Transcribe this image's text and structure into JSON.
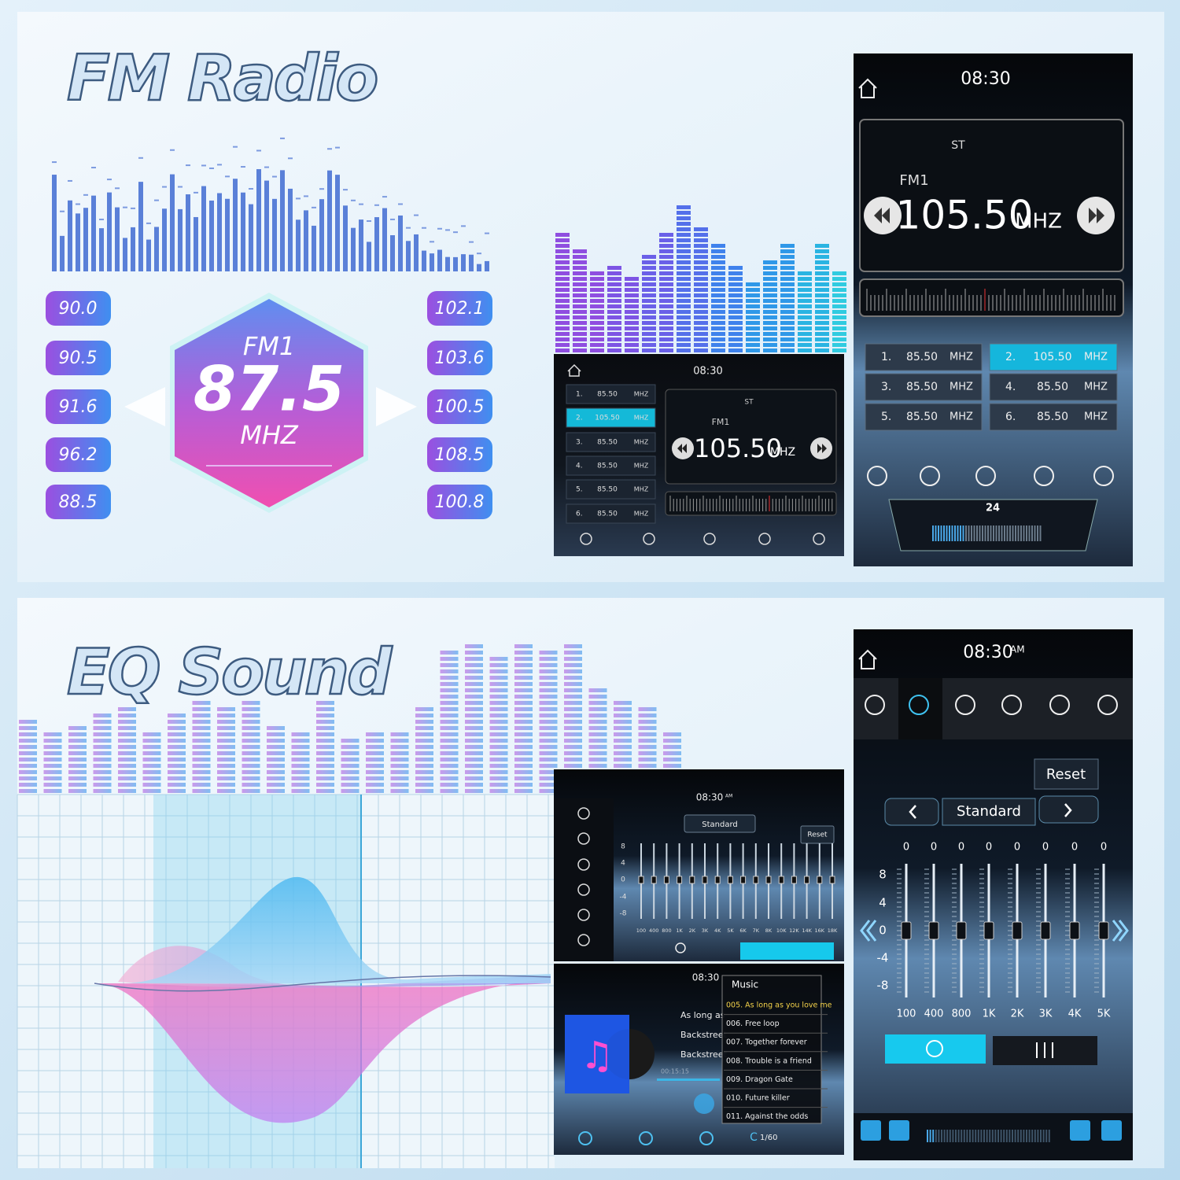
{
  "fm_section": {
    "title": "FM Radio",
    "left_presets": [
      "90.0",
      "90.5",
      "91.6",
      "96.2",
      "88.5"
    ],
    "right_presets": [
      "102.1",
      "103.6",
      "100.5",
      "108.5",
      "100.8"
    ],
    "badge": {
      "band": "FM1",
      "frequency": "87.5",
      "unit": "MHZ"
    },
    "small_screen": {
      "time": "08:30",
      "st": "ST",
      "band": "FM1",
      "frequency": "105.50",
      "unit": "MHZ",
      "presets": [
        {
          "num": "1.",
          "freq": "85.50",
          "unit": "MHZ"
        },
        {
          "num": "2.",
          "freq": "105.50",
          "unit": "MHZ"
        },
        {
          "num": "3.",
          "freq": "85.50",
          "unit": "MHZ"
        },
        {
          "num": "4.",
          "freq": "85.50",
          "unit": "MHZ"
        },
        {
          "num": "5.",
          "freq": "85.50",
          "unit": "MHZ"
        },
        {
          "num": "6.",
          "freq": "85.50",
          "unit": "MHZ"
        }
      ]
    },
    "large_screen": {
      "time": "08:30",
      "st": "ST",
      "band": "FM1",
      "frequency": "105.50",
      "unit": "MHZ",
      "volume": "24",
      "presets": [
        {
          "num": "1.",
          "freq": "85.50",
          "unit": "MHZ"
        },
        {
          "num": "2.",
          "freq": "105.50",
          "unit": "MHZ"
        },
        {
          "num": "3.",
          "freq": "85.50",
          "unit": "MHZ"
        },
        {
          "num": "4.",
          "freq": "85.50",
          "unit": "MHZ"
        },
        {
          "num": "5.",
          "freq": "85.50",
          "unit": "MHZ"
        },
        {
          "num": "6.",
          "freq": "85.50",
          "unit": "MHZ"
        }
      ]
    }
  },
  "eq_section": {
    "title": "EQ Sound",
    "eq_small": {
      "time": "08:30",
      "time_suffix": "AM",
      "preset": "Standard",
      "reset": "Reset",
      "scale": [
        "8",
        "4",
        "0",
        "-4",
        "-8"
      ],
      "freq_labels": [
        "100",
        "400",
        "800",
        "1K",
        "2K",
        "3K",
        "4K",
        "5K",
        "6K",
        "7K",
        "8K",
        "10K",
        "12K",
        "14K",
        "16K",
        "18K"
      ]
    },
    "music": {
      "time": "08:30",
      "header": "Music",
      "track_info": [
        "As long as",
        "Backstreet",
        "Backstreet"
      ],
      "position": "00:15:15",
      "playlist": [
        "005. As long as you love me",
        "006. Free loop",
        "007. Together forever",
        "008. Trouble is a friend",
        "009. Dragon Gate",
        "010. Future killer",
        "011. Against the odds"
      ],
      "counter": "1/60"
    },
    "eq_large": {
      "time": "08:30",
      "time_suffix": "AM",
      "reset": "Reset",
      "preset": "Standard",
      "band_values": [
        "0",
        "0",
        "0",
        "0",
        "0",
        "0",
        "0",
        "0"
      ],
      "scale": [
        "8",
        "4",
        "0",
        "-4",
        "-8"
      ],
      "freq_labels": [
        "100",
        "400",
        "800",
        "1K",
        "2K",
        "3K",
        "4K",
        "5K"
      ]
    }
  }
}
